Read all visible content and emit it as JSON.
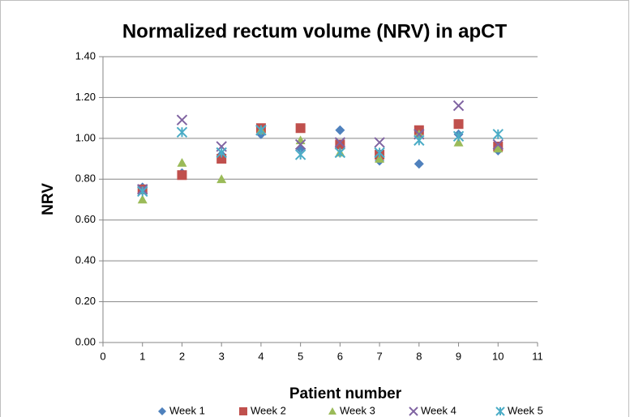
{
  "chart_data": {
    "type": "scatter",
    "title": "Normalized rectum volume (NRV) in apCT",
    "x_label": "Patient number",
    "y_label": "NRV",
    "x": [
      1,
      2,
      3,
      4,
      5,
      6,
      7,
      8,
      9,
      10
    ],
    "series": [
      {
        "name": "Week 1",
        "color": "#4f81bd",
        "marker": "diamond",
        "values": [
          0.76,
          0.83,
          0.92,
          1.02,
          0.95,
          1.04,
          0.89,
          0.875,
          1.02,
          0.94
        ]
      },
      {
        "name": "Week 2",
        "color": "#c0504d",
        "marker": "square",
        "values": [
          0.75,
          0.82,
          0.9,
          1.05,
          1.05,
          0.97,
          0.92,
          1.04,
          1.07,
          0.96
        ]
      },
      {
        "name": "Week 3",
        "color": "#9bbb59",
        "marker": "triangle",
        "values": [
          0.7,
          0.88,
          0.8,
          1.04,
          0.99,
          0.93,
          0.9,
          1.02,
          0.98,
          0.95
        ]
      },
      {
        "name": "Week 4",
        "color": "#8064a2",
        "marker": "x",
        "values": [
          0.75,
          1.09,
          0.96,
          1.04,
          0.97,
          0.98,
          0.98,
          1.02,
          1.16,
          0.97
        ]
      },
      {
        "name": "Week 5",
        "color": "#4bacc6",
        "marker": "star",
        "values": [
          0.74,
          1.03,
          0.93,
          1.04,
          0.92,
          0.93,
          0.93,
          0.99,
          1.01,
          1.02
        ]
      }
    ],
    "xlim": [
      0,
      11
    ],
    "xticks": [
      0,
      1,
      2,
      3,
      4,
      5,
      6,
      7,
      8,
      9,
      10,
      11
    ],
    "ylim": [
      0,
      1.4
    ],
    "yticks": [
      {
        "value": 0,
        "label": "0.00"
      },
      {
        "value": 0.2,
        "label": "0.20"
      },
      {
        "value": 0.4,
        "label": "0.40"
      },
      {
        "value": 0.6,
        "label": "0.60"
      },
      {
        "value": 0.8,
        "label": "0.80"
      },
      {
        "value": 1.0,
        "label": "1.00"
      },
      {
        "value": 1.2,
        "label": "1.20"
      },
      {
        "value": 1.4,
        "label": "1.40"
      }
    ],
    "grid": true,
    "legend": "bottom"
  }
}
